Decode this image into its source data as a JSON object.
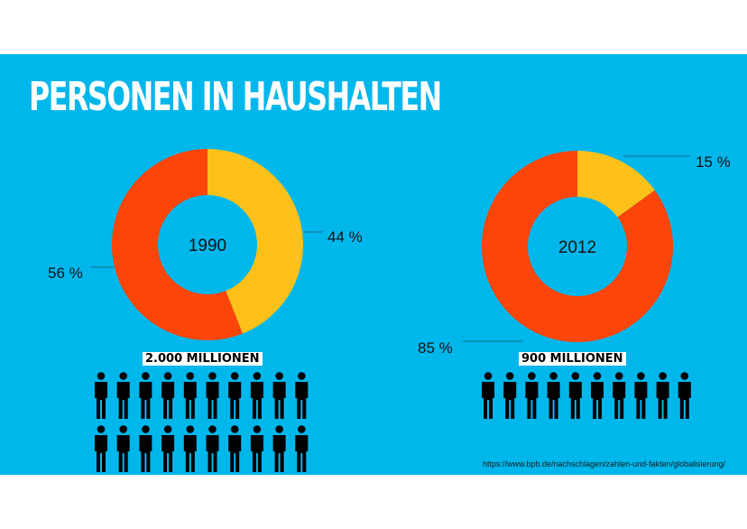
{
  "title": "PERSONEN IN HAUSHALTEN",
  "source": "https://www.bpb.de/nachschlagen/zahlen-und-fakten/globalisierung/",
  "colors": {
    "background": "#00b7ec",
    "red": "#fc4508",
    "yellow": "#fdc119",
    "figure": "#000000"
  },
  "icons": {
    "person": "person-icon"
  },
  "chart_data": [
    {
      "type": "pie",
      "center_label": "1990",
      "slices": [
        {
          "label": "44 %",
          "value": 44,
          "color": "#fdc119"
        },
        {
          "label": "56 %",
          "value": 56,
          "color": "#fc4508"
        }
      ],
      "caption": "2.000 MILLIONEN",
      "figures": 20
    },
    {
      "type": "pie",
      "center_label": "2012",
      "slices": [
        {
          "label": "15 %",
          "value": 15,
          "color": "#fdc119"
        },
        {
          "label": "85 %",
          "value": 85,
          "color": "#fc4508"
        }
      ],
      "caption": "900 MILLIONEN",
      "figures": 10
    }
  ]
}
